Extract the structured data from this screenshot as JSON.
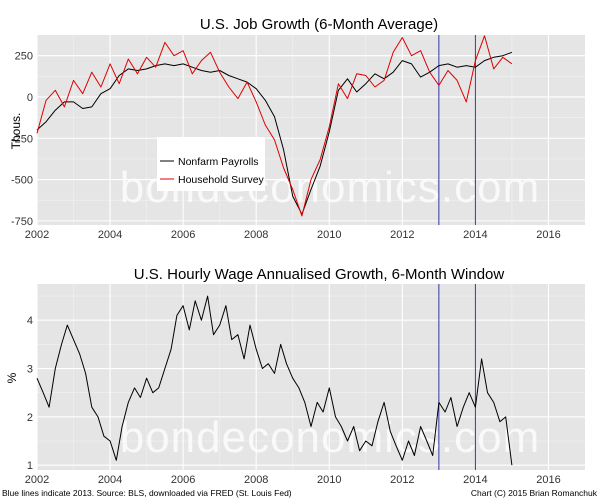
{
  "watermark": "bondeconomics.com",
  "footer": {
    "left": "Blue lines indicate 2013. Source: BLS, downloaded via FRED (St. Louis Fed)",
    "right": "Chart (C) 2015 Brian Romanchuk"
  },
  "colors": {
    "panel_bg": "#e5e5e5",
    "grid": "#ffffff",
    "payrolls": "#000000",
    "household": "#e00000",
    "markers": "#3333aa"
  },
  "chart_data": [
    {
      "type": "line",
      "title": "U.S. Job Growth (6-Month Average)",
      "ylabel": "Thous.",
      "xlabel": "",
      "xlim": [
        2002,
        2017
      ],
      "ylim": [
        -775,
        375
      ],
      "xticks": [
        2002,
        2004,
        2006,
        2008,
        2010,
        2012,
        2014,
        2016
      ],
      "yticks": [
        -750,
        -500,
        -250,
        0,
        250
      ],
      "vlines": [
        2013,
        2014
      ],
      "legend": {
        "placement": "center-left",
        "entries": [
          "Nonfarm Payrolls",
          "Household Survey"
        ]
      },
      "series": [
        {
          "name": "Nonfarm Payrolls",
          "color": "#000000",
          "points": [
            [
              2002,
              -200
            ],
            [
              2002.25,
              -150
            ],
            [
              2002.5,
              -80
            ],
            [
              2002.75,
              -30
            ],
            [
              2003,
              -30
            ],
            [
              2003.25,
              -70
            ],
            [
              2003.5,
              -60
            ],
            [
              2003.75,
              20
            ],
            [
              2004,
              50
            ],
            [
              2004.25,
              130
            ],
            [
              2004.5,
              170
            ],
            [
              2004.75,
              160
            ],
            [
              2005,
              170
            ],
            [
              2005.25,
              190
            ],
            [
              2005.5,
              200
            ],
            [
              2005.75,
              190
            ],
            [
              2006,
              200
            ],
            [
              2006.25,
              180
            ],
            [
              2006.5,
              160
            ],
            [
              2006.75,
              150
            ],
            [
              2007,
              160
            ],
            [
              2007.25,
              130
            ],
            [
              2007.5,
              110
            ],
            [
              2007.75,
              90
            ],
            [
              2008,
              50
            ],
            [
              2008.25,
              -20
            ],
            [
              2008.5,
              -120
            ],
            [
              2008.75,
              -320
            ],
            [
              2009,
              -600
            ],
            [
              2009.25,
              -710
            ],
            [
              2009.5,
              -560
            ],
            [
              2009.75,
              -420
            ],
            [
              2010,
              -210
            ],
            [
              2010.25,
              40
            ],
            [
              2010.5,
              110
            ],
            [
              2010.75,
              30
            ],
            [
              2011,
              80
            ],
            [
              2011.25,
              140
            ],
            [
              2011.5,
              110
            ],
            [
              2011.75,
              150
            ],
            [
              2012,
              220
            ],
            [
              2012.25,
              200
            ],
            [
              2012.5,
              120
            ],
            [
              2012.75,
              150
            ],
            [
              2013,
              190
            ],
            [
              2013.25,
              200
            ],
            [
              2013.5,
              180
            ],
            [
              2013.75,
              190
            ],
            [
              2014,
              180
            ],
            [
              2014.25,
              220
            ],
            [
              2014.5,
              240
            ],
            [
              2014.75,
              250
            ],
            [
              2015,
              270
            ]
          ]
        },
        {
          "name": "Household Survey",
          "color": "#dd0000",
          "points": [
            [
              2002,
              -220
            ],
            [
              2002.25,
              -20
            ],
            [
              2002.5,
              40
            ],
            [
              2002.75,
              -60
            ],
            [
              2003,
              100
            ],
            [
              2003.25,
              20
            ],
            [
              2003.5,
              150
            ],
            [
              2003.75,
              60
            ],
            [
              2004,
              200
            ],
            [
              2004.25,
              80
            ],
            [
              2004.5,
              230
            ],
            [
              2004.75,
              140
            ],
            [
              2005,
              240
            ],
            [
              2005.25,
              180
            ],
            [
              2005.5,
              330
            ],
            [
              2005.75,
              250
            ],
            [
              2006,
              280
            ],
            [
              2006.25,
              140
            ],
            [
              2006.5,
              220
            ],
            [
              2006.75,
              270
            ],
            [
              2007,
              150
            ],
            [
              2007.25,
              60
            ],
            [
              2007.5,
              -10
            ],
            [
              2007.75,
              90
            ],
            [
              2008,
              -30
            ],
            [
              2008.25,
              -170
            ],
            [
              2008.5,
              -260
            ],
            [
              2008.75,
              -430
            ],
            [
              2009,
              -560
            ],
            [
              2009.25,
              -720
            ],
            [
              2009.5,
              -500
            ],
            [
              2009.75,
              -380
            ],
            [
              2010,
              -180
            ],
            [
              2010.25,
              80
            ],
            [
              2010.5,
              -10
            ],
            [
              2010.75,
              140
            ],
            [
              2011,
              130
            ],
            [
              2011.25,
              60
            ],
            [
              2011.5,
              100
            ],
            [
              2011.75,
              270
            ],
            [
              2012,
              360
            ],
            [
              2012.25,
              250
            ],
            [
              2012.5,
              280
            ],
            [
              2012.75,
              150
            ],
            [
              2013,
              70
            ],
            [
              2013.25,
              160
            ],
            [
              2013.5,
              100
            ],
            [
              2013.75,
              -30
            ],
            [
              2014,
              220
            ],
            [
              2014.25,
              370
            ],
            [
              2014.5,
              170
            ],
            [
              2014.75,
              240
            ],
            [
              2015,
              200
            ]
          ]
        }
      ]
    },
    {
      "type": "line",
      "title": "U.S. Hourly Wage Annualised Growth, 6-Month Window",
      "ylabel": "%",
      "xlabel": "",
      "xlim": [
        2002,
        2017
      ],
      "ylim": [
        0.9,
        4.75
      ],
      "xticks": [
        2002,
        2004,
        2006,
        2008,
        2010,
        2012,
        2014,
        2016
      ],
      "yticks": [
        1,
        2,
        3,
        4
      ],
      "vlines": [
        2013,
        2014
      ],
      "series": [
        {
          "color": "#000000",
          "points": [
            [
              2002,
              2.8
            ],
            [
              2002.17,
              2.5
            ],
            [
              2002.33,
              2.2
            ],
            [
              2002.5,
              3.0
            ],
            [
              2002.67,
              3.5
            ],
            [
              2002.83,
              3.9
            ],
            [
              2003,
              3.6
            ],
            [
              2003.17,
              3.3
            ],
            [
              2003.33,
              2.9
            ],
            [
              2003.5,
              2.2
            ],
            [
              2003.67,
              2.0
            ],
            [
              2003.83,
              1.6
            ],
            [
              2004,
              1.5
            ],
            [
              2004.17,
              1.1
            ],
            [
              2004.33,
              1.8
            ],
            [
              2004.5,
              2.3
            ],
            [
              2004.67,
              2.6
            ],
            [
              2004.83,
              2.4
            ],
            [
              2005,
              2.8
            ],
            [
              2005.17,
              2.5
            ],
            [
              2005.33,
              2.6
            ],
            [
              2005.5,
              3.0
            ],
            [
              2005.67,
              3.4
            ],
            [
              2005.83,
              4.1
            ],
            [
              2006,
              4.3
            ],
            [
              2006.17,
              3.8
            ],
            [
              2006.33,
              4.4
            ],
            [
              2006.5,
              4.0
            ],
            [
              2006.67,
              4.5
            ],
            [
              2006.83,
              3.7
            ],
            [
              2007,
              3.9
            ],
            [
              2007.17,
              4.3
            ],
            [
              2007.33,
              3.6
            ],
            [
              2007.5,
              3.7
            ],
            [
              2007.67,
              3.2
            ],
            [
              2007.83,
              3.9
            ],
            [
              2008,
              3.4
            ],
            [
              2008.17,
              3.0
            ],
            [
              2008.33,
              3.1
            ],
            [
              2008.5,
              2.9
            ],
            [
              2008.67,
              3.5
            ],
            [
              2008.83,
              3.1
            ],
            [
              2009,
              2.8
            ],
            [
              2009.17,
              2.6
            ],
            [
              2009.33,
              2.3
            ],
            [
              2009.5,
              1.8
            ],
            [
              2009.67,
              2.3
            ],
            [
              2009.83,
              2.1
            ],
            [
              2010,
              2.6
            ],
            [
              2010.17,
              2.0
            ],
            [
              2010.33,
              1.8
            ],
            [
              2010.5,
              1.5
            ],
            [
              2010.67,
              1.8
            ],
            [
              2010.83,
              1.3
            ],
            [
              2011,
              1.5
            ],
            [
              2011.17,
              1.4
            ],
            [
              2011.33,
              1.9
            ],
            [
              2011.5,
              2.3
            ],
            [
              2011.67,
              1.7
            ],
            [
              2011.83,
              1.4
            ],
            [
              2012,
              1.1
            ],
            [
              2012.17,
              1.5
            ],
            [
              2012.33,
              1.2
            ],
            [
              2012.5,
              1.8
            ],
            [
              2012.67,
              1.5
            ],
            [
              2012.83,
              1.2
            ],
            [
              2013,
              2.3
            ],
            [
              2013.17,
              2.1
            ],
            [
              2013.33,
              2.4
            ],
            [
              2013.5,
              1.8
            ],
            [
              2013.67,
              2.2
            ],
            [
              2013.83,
              2.5
            ],
            [
              2014,
              2.2
            ],
            [
              2014.17,
              3.2
            ],
            [
              2014.33,
              2.5
            ],
            [
              2014.5,
              2.3
            ],
            [
              2014.67,
              1.9
            ],
            [
              2014.83,
              2.0
            ],
            [
              2015,
              1.0
            ]
          ]
        }
      ]
    }
  ]
}
